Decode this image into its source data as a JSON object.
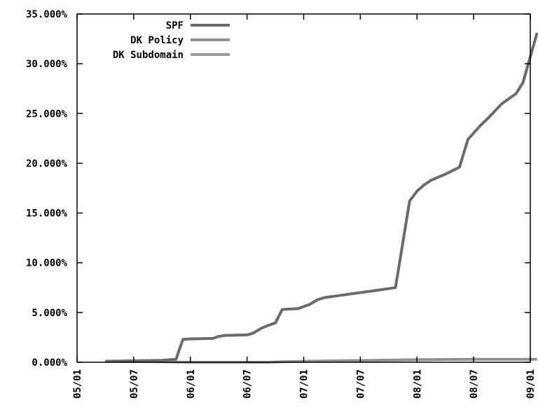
{
  "chart_data": {
    "type": "line",
    "title": "",
    "xlabel": "",
    "ylabel": "",
    "x_ticks": [
      "05/01",
      "05/07",
      "06/01",
      "06/07",
      "07/01",
      "07/07",
      "08/01",
      "08/07",
      "09/01"
    ],
    "y_ticks": [
      "0.000%",
      "5.000%",
      "10.000%",
      "15.000%",
      "20.000%",
      "25.000%",
      "30.000%",
      "35.000%"
    ],
    "ylim": [
      0,
      35
    ],
    "grid": false,
    "legend_position": "top-left",
    "series": [
      {
        "name": "SPF",
        "color": "#6a6a6a",
        "points": [
          [
            0.5,
            0.1
          ],
          [
            1.0,
            0.15
          ],
          [
            1.5,
            0.2
          ],
          [
            1.62,
            0.25
          ],
          [
            1.75,
            0.3
          ],
          [
            1.8,
            1.2
          ],
          [
            1.87,
            2.3
          ],
          [
            2.0,
            2.35
          ],
          [
            2.4,
            2.4
          ],
          [
            2.5,
            2.6
          ],
          [
            2.62,
            2.7
          ],
          [
            3.0,
            2.75
          ],
          [
            3.1,
            2.9
          ],
          [
            3.25,
            3.4
          ],
          [
            3.37,
            3.7
          ],
          [
            3.5,
            3.95
          ],
          [
            3.62,
            5.3
          ],
          [
            3.75,
            5.35
          ],
          [
            3.9,
            5.4
          ],
          [
            4.1,
            5.8
          ],
          [
            4.25,
            6.3
          ],
          [
            4.37,
            6.5
          ],
          [
            4.62,
            6.7
          ],
          [
            4.87,
            6.9
          ],
          [
            5.0,
            7.0
          ],
          [
            5.25,
            7.2
          ],
          [
            5.5,
            7.4
          ],
          [
            5.62,
            7.5
          ],
          [
            5.75,
            12.0
          ],
          [
            5.87,
            16.2
          ],
          [
            6.0,
            17.2
          ],
          [
            6.12,
            17.8
          ],
          [
            6.25,
            18.3
          ],
          [
            6.5,
            18.9
          ],
          [
            6.75,
            19.6
          ],
          [
            6.9,
            22.4
          ],
          [
            7.12,
            23.8
          ],
          [
            7.25,
            24.5
          ],
          [
            7.5,
            26.0
          ],
          [
            7.75,
            27.0
          ],
          [
            7.87,
            28.1
          ],
          [
            8.12,
            33.1
          ]
        ]
      },
      {
        "name": "DK Policy",
        "color": "#8f8f8f",
        "points": [
          [
            3.0,
            0.0
          ],
          [
            3.37,
            0.0
          ],
          [
            3.62,
            0.05
          ],
          [
            4.0,
            0.1
          ],
          [
            4.62,
            0.15
          ],
          [
            5.25,
            0.2
          ],
          [
            6.0,
            0.25
          ],
          [
            7.0,
            0.3
          ],
          [
            8.12,
            0.3
          ]
        ]
      },
      {
        "name": "DK Subdomain",
        "color": "#9a9a9a",
        "points": [
          [
            0.5,
            0.1
          ],
          [
            1.5,
            0.05
          ],
          [
            2.0,
            0.0
          ],
          [
            3.37,
            0.0
          ]
        ]
      }
    ]
  }
}
